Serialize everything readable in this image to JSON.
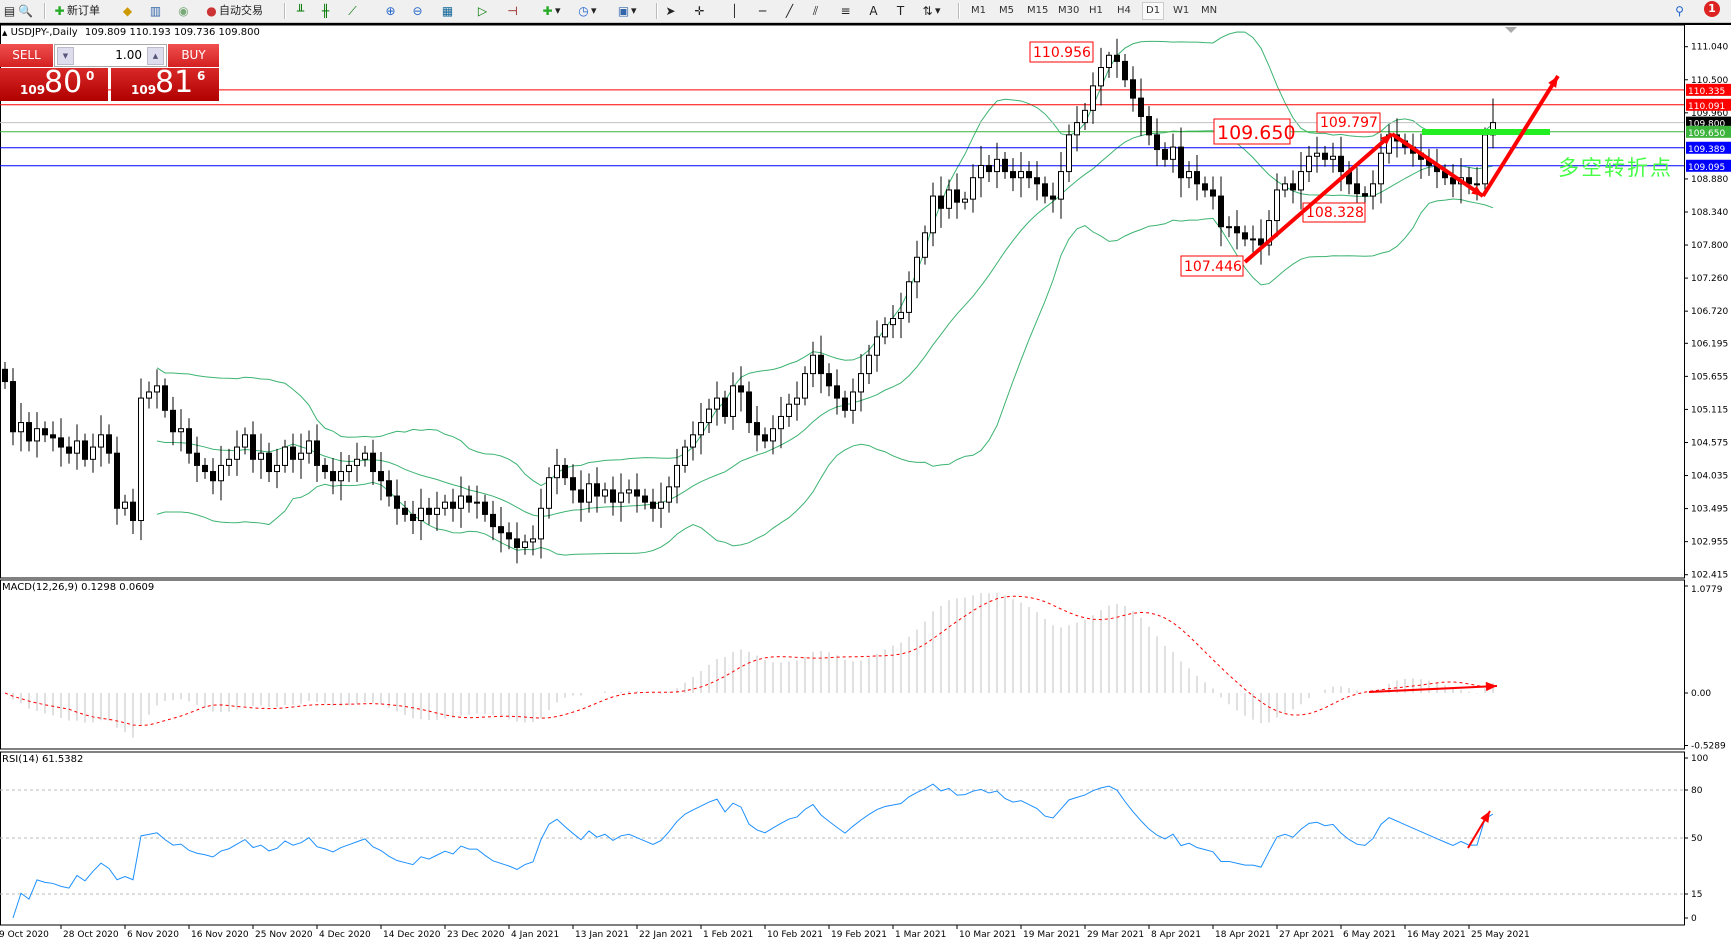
{
  "toolbar": {
    "new_order": "新订单",
    "auto_trading": "自动交易",
    "timeframes": [
      "M1",
      "M5",
      "M15",
      "M30",
      "H1",
      "H4",
      "D1",
      "W1",
      "MN"
    ],
    "selected_timeframe": "D1",
    "notification_count": "1",
    "icons": [
      "profiles-icon",
      "zoom-window-icon",
      "new-order-icon",
      "market-watch-icon",
      "data-window-icon",
      "signals-icon",
      "auto-trading-icon",
      "bar-chart-icon",
      "candlestick-icon",
      "line-chart-icon",
      "zoom-in-icon",
      "zoom-out-icon",
      "tile-icon",
      "autoscroll-icon",
      "chart-shift-icon",
      "indicators-icon",
      "periods-icon",
      "templates-icon",
      "cursor-icon",
      "crosshair-icon",
      "vertical-line-icon",
      "horizontal-line-icon",
      "trendline-icon",
      "fibonacci-icon",
      "channel-icon",
      "text-icon",
      "label-icon",
      "arrows-icon"
    ]
  },
  "chart": {
    "symbol_line": "USDJPY-,Daily",
    "ohlc": "109.809 110.193 109.736 109.800"
  },
  "trade_panel": {
    "sell_label": "SELL",
    "buy_label": "BUY",
    "lot": "1.00",
    "sell_big": "109",
    "sell_main": "80",
    "sell_pip": "0",
    "buy_big": "109",
    "buy_main": "81",
    "buy_pip": "6"
  },
  "annotations": {
    "labels": [
      "110.956",
      "109.650",
      "109.797",
      "108.328",
      "107.446"
    ],
    "text_cn": "多空转折点"
  },
  "colors": {
    "bull": "#ffffff",
    "bear": "#000000",
    "bands": "#3cb371",
    "macd_hist": "#c0c0c0",
    "macd_signal": "#ff0000",
    "rsi": "#1e90ff",
    "annotation": "#ff0000",
    "cn_text": "#44ff44"
  },
  "indicators": {
    "macd_label": "MACD(12,26,9) 0.1298 0.0609",
    "rsi_label": "RSI(14) 61.5382"
  },
  "chart_data": {
    "type": "candlestick",
    "closes": [
      105.57,
      104.75,
      104.9,
      104.6,
      104.8,
      104.7,
      104.65,
      104.5,
      104.4,
      104.6,
      104.3,
      104.5,
      104.7,
      104.4,
      103.5,
      103.6,
      103.3,
      105.3,
      105.4,
      105.5,
      105.1,
      104.75,
      104.8,
      104.4,
      104.2,
      104.1,
      103.95,
      104.2,
      104.3,
      104.5,
      104.7,
      104.3,
      104.4,
      104.1,
      104.2,
      104.5,
      104.3,
      104.4,
      104.6,
      104.2,
      104.1,
      103.95,
      104.1,
      104.2,
      104.3,
      104.4,
      104.1,
      103.95,
      103.7,
      103.5,
      103.4,
      103.3,
      103.5,
      103.4,
      103.5,
      103.6,
      103.5,
      103.7,
      103.6,
      103.6,
      103.4,
      103.2,
      103.1,
      103.0,
      102.86,
      102.95,
      103.0,
      103.5,
      104.0,
      104.2,
      104.0,
      103.8,
      103.6,
      103.9,
      103.7,
      103.8,
      103.6,
      103.75,
      103.8,
      103.7,
      103.6,
      103.5,
      103.6,
      103.85,
      104.2,
      104.5,
      104.7,
      104.9,
      105.12,
      105.3,
      105.0,
      105.5,
      105.4,
      104.9,
      104.7,
      104.6,
      104.8,
      105.0,
      105.2,
      105.3,
      105.7,
      106.0,
      105.7,
      105.5,
      105.3,
      105.1,
      105.4,
      105.7,
      106.0,
      106.3,
      106.5,
      106.6,
      106.7,
      107.2,
      107.6,
      108.0,
      108.6,
      108.4,
      108.7,
      108.5,
      108.55,
      108.9,
      109.1,
      109.0,
      109.2,
      109.0,
      108.9,
      109.0,
      108.9,
      108.8,
      108.6,
      108.55,
      109.0,
      109.6,
      109.8,
      110.0,
      110.4,
      110.7,
      110.9,
      110.8,
      110.5,
      110.2,
      109.9,
      109.6,
      109.36,
      109.2,
      109.4,
      108.9,
      109.0,
      108.8,
      108.7,
      108.6,
      108.1,
      108.1,
      108.0,
      107.9,
      107.9,
      107.8,
      108.2,
      108.7,
      108.8,
      108.7,
      109.0,
      109.25,
      109.3,
      109.2,
      109.25,
      109.0,
      108.8,
      108.64,
      108.6,
      108.8,
      109.3,
      109.6,
      109.5,
      109.4,
      109.3,
      109.2,
      109.1,
      109.0,
      108.9,
      108.8,
      108.9,
      108.8,
      108.8,
      109.6,
      109.8
    ],
    "price_ticks": [
      "111.040",
      "110.500",
      "109.960",
      "108.880",
      "108.340",
      "107.800",
      "107.260",
      "106.720",
      "106.195",
      "105.655",
      "105.115",
      "104.575",
      "104.035",
      "103.495",
      "102.955",
      "102.415"
    ],
    "price_range": [
      102.415,
      111.04
    ],
    "levels": [
      {
        "value": "110.335",
        "color": "#ff0000"
      },
      {
        "value": "110.091",
        "color": "#ff0000"
      },
      {
        "value": "109.800",
        "color": "#000000",
        "line": "#c0c0c0"
      },
      {
        "value": "109.650",
        "color": "#3cb43c"
      },
      {
        "value": "109.389",
        "color": "#0000ff"
      },
      {
        "value": "109.095",
        "color": "#0000ff"
      }
    ],
    "dates": [
      "9 Oct 2020",
      "28 Oct 2020",
      "6 Nov 2020",
      "16 Nov 2020",
      "25 Nov 2020",
      "4 Dec 2020",
      "14 Dec 2020",
      "23 Dec 2020",
      "4 Jan 2021",
      "13 Jan 2021",
      "22 Jan 2021",
      "1 Feb 2021",
      "10 Feb 2021",
      "19 Feb 2021",
      "1 Mar 2021",
      "10 Mar 2021",
      "19 Mar 2021",
      "29 Mar 2021",
      "8 Apr 2021",
      "18 Apr 2021",
      "27 Apr 2021",
      "6 May 2021",
      "16 May 2021",
      "25 May 2021"
    ],
    "macd_ticks": [
      "1.0779",
      "0.00",
      "-0.5289"
    ],
    "macd_range": [
      -0.5289,
      1.0779
    ],
    "rsi_ticks": [
      "100",
      "80",
      "50",
      "15",
      "0"
    ],
    "rsi_levels": [
      80,
      50,
      15
    ]
  }
}
